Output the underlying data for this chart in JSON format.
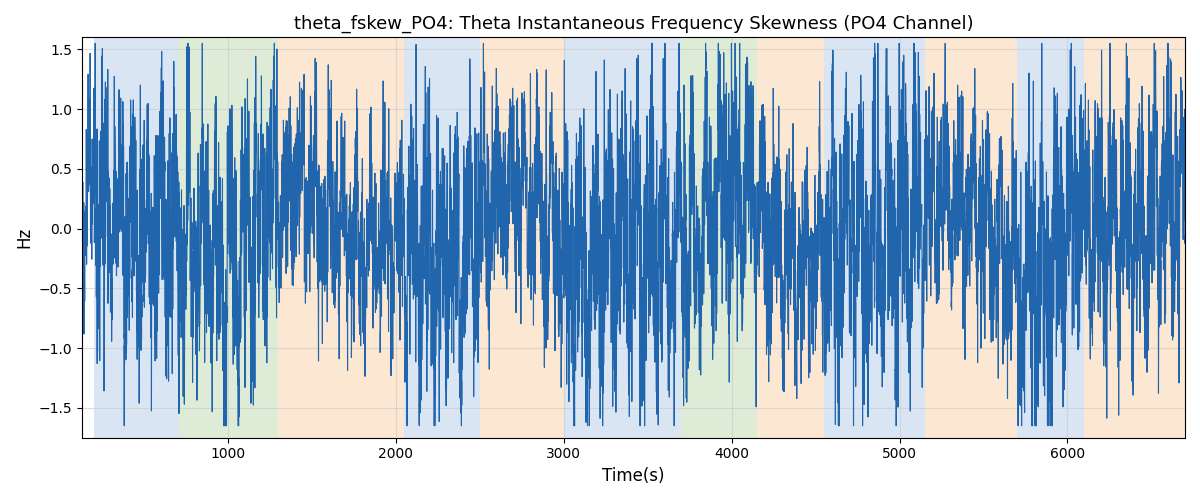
{
  "title": "theta_fskew_PO4: Theta Instantaneous Frequency Skewness (PO4 Channel)",
  "xlabel": "Time(s)",
  "ylabel": "Hz",
  "ylim": [
    -1.75,
    1.6
  ],
  "xlim": [
    130,
    6700
  ],
  "line_color": "#2166ac",
  "line_width": 0.8,
  "bg_bands": [
    {
      "xstart": 200,
      "xend": 700,
      "color": "#aec6e8",
      "alpha": 0.45
    },
    {
      "xstart": 700,
      "xend": 1300,
      "color": "#b6d7a8",
      "alpha": 0.45
    },
    {
      "xstart": 1300,
      "xend": 2050,
      "color": "#f9cb9c",
      "alpha": 0.45
    },
    {
      "xstart": 2050,
      "xend": 2500,
      "color": "#aec6e8",
      "alpha": 0.45
    },
    {
      "xstart": 2500,
      "xend": 3000,
      "color": "#f9cb9c",
      "alpha": 0.45
    },
    {
      "xstart": 3000,
      "xend": 3700,
      "color": "#aec6e8",
      "alpha": 0.45
    },
    {
      "xstart": 3700,
      "xend": 4150,
      "color": "#b6d7a8",
      "alpha": 0.45
    },
    {
      "xstart": 4150,
      "xend": 4550,
      "color": "#f9cb9c",
      "alpha": 0.45
    },
    {
      "xstart": 4550,
      "xend": 5150,
      "color": "#aec6e8",
      "alpha": 0.45
    },
    {
      "xstart": 5150,
      "xend": 5700,
      "color": "#f9cb9c",
      "alpha": 0.45
    },
    {
      "xstart": 5700,
      "xend": 6100,
      "color": "#aec6e8",
      "alpha": 0.45
    },
    {
      "xstart": 6100,
      "xend": 6700,
      "color": "#f9cb9c",
      "alpha": 0.45
    }
  ],
  "seed": 42,
  "grid_color": "#cccccc",
  "grid_alpha": 0.7,
  "amplitude_profile": [
    {
      "xstart": 0,
      "xend": 200,
      "amp": 0.7
    },
    {
      "xstart": 200,
      "xend": 700,
      "amp": 0.85
    },
    {
      "xstart": 700,
      "xend": 1300,
      "amp": 0.9
    },
    {
      "xstart": 1300,
      "xend": 2050,
      "amp": 0.65
    },
    {
      "xstart": 2050,
      "xend": 2500,
      "amp": 0.95
    },
    {
      "xstart": 2500,
      "xend": 3000,
      "amp": 0.7
    },
    {
      "xstart": 3000,
      "xend": 3700,
      "amp": 0.95
    },
    {
      "xstart": 3700,
      "xend": 4150,
      "amp": 0.85
    },
    {
      "xstart": 4150,
      "xend": 4550,
      "amp": 0.7
    },
    {
      "xstart": 4550,
      "xend": 5150,
      "amp": 0.95
    },
    {
      "xstart": 5150,
      "xend": 5700,
      "amp": 0.7
    },
    {
      "xstart": 5700,
      "xend": 6100,
      "amp": 0.95
    },
    {
      "xstart": 6100,
      "xend": 6700,
      "amp": 0.85
    }
  ]
}
